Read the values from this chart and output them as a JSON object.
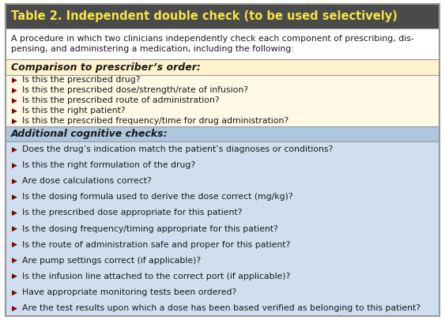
{
  "title": "Table 2. Independent double check (to be used selectively)",
  "title_bg": "#4a4a4a",
  "title_color": "#f5e642",
  "title_fontsize": 10.5,
  "intro_text": "A procedure in which two clinicians independently check each component of prescribing, dis-\npensing, and administering a medication, including the following:",
  "intro_bg": "#ffffff",
  "section1_header": "Comparison to prescriber’s order:",
  "section1_header_bg": "#fff2cc",
  "section1_items": [
    "Is this the prescribed drug?",
    "Is this the prescribed dose/strength/rate of infusion?",
    "Is this the prescribed route of administration?",
    "Is this the right patient?",
    "Is this the prescribed frequency/time for drug administration?"
  ],
  "section1_bg": "#fff9e6",
  "section2_header": "Additional cognitive checks:",
  "section2_header_bg": "#aec6de",
  "section2_items": [
    "Does the drug’s indication match the patient’s diagnoses or conditions?",
    "Is this the right formulation of the drug?",
    "Are dose calculations correct?",
    "Is the dosing formula used to derive the dose correct (mg/kg)?",
    "Is the prescribed dose appropriate for this patient?",
    "Is the dosing frequency/timing appropriate for this patient?",
    "Is the route of administration safe and proper for this patient?",
    "Are pump settings correct (if applicable)?",
    "Is the infusion line attached to the correct port (if applicable)?",
    "Have appropriate monitoring tests been ordered?",
    "Are the test results upon which a dose has been based verified as belonging to this patient?"
  ],
  "section2_bg": "#d0dff0",
  "bullet_color": "#8b0000",
  "border_color": "#999999",
  "text_color": "#1a1a1a",
  "item_fontsize": 7.8,
  "header_fontsize": 9.0
}
